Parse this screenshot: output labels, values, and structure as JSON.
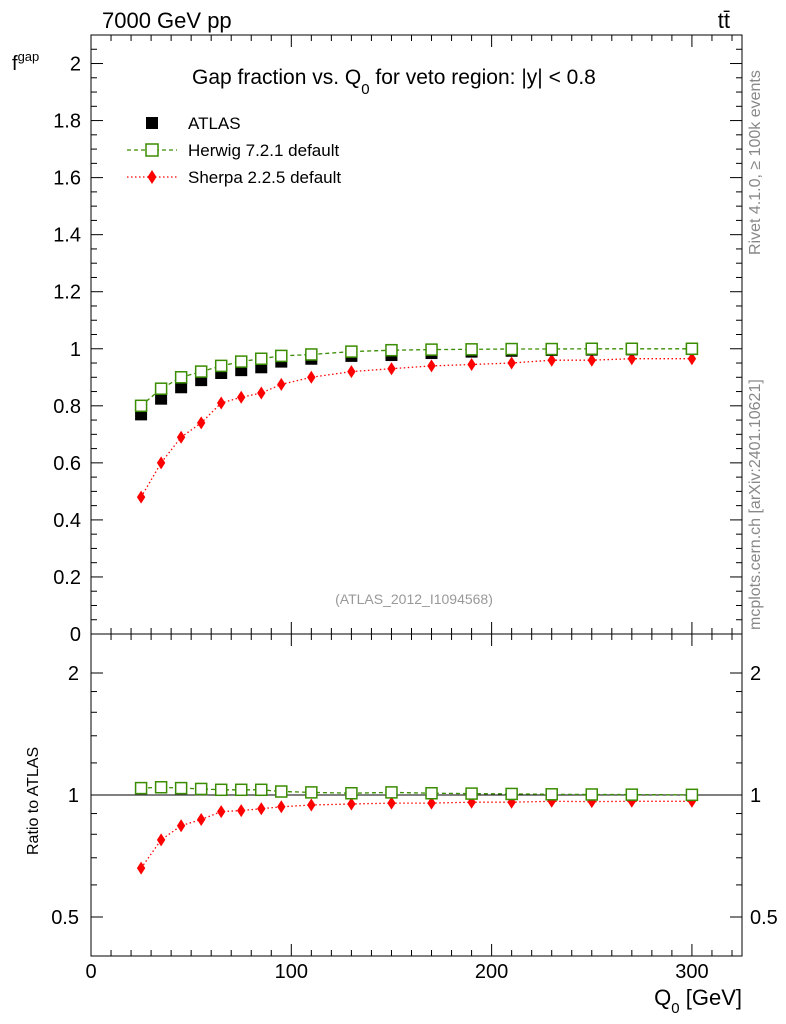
{
  "header": {
    "left": "7000 GeV pp",
    "right": "tt̄"
  },
  "side_labels": {
    "rivet": "Rivet 4.1.0, ≥ 100k events",
    "mcplots": "mcplots.cern.ch [arXiv:2401.10621]"
  },
  "chart_data": [
    {
      "panel": "main",
      "type": "scatter",
      "title_pre": "Gap fraction vs. Q",
      "title_sub": "0",
      "title_post": " for veto region: |y| < 0.8",
      "ylabel_main": "f",
      "ylabel_sub": "gap",
      "analysis_label": "(ATLAS_2012_I1094568)",
      "xlim": [
        0,
        325
      ],
      "ylim": [
        0,
        2.1
      ],
      "yticks": [
        0,
        0.2,
        0.4,
        0.6,
        0.8,
        1,
        1.2,
        1.4,
        1.6,
        1.8,
        2
      ],
      "ytick_labels": [
        "0",
        "0.2",
        "0.4",
        "0.6",
        "0.8",
        "1",
        "1.2",
        "1.4",
        "1.6",
        "1.8",
        "2"
      ],
      "x": [
        25,
        35,
        45,
        55,
        65,
        75,
        85,
        95,
        110,
        130,
        150,
        170,
        190,
        210,
        230,
        250,
        270,
        300
      ],
      "series": [
        {
          "name": "ATLAS",
          "color": "#000000",
          "marker": "square-filled",
          "values": [
            0.77,
            0.825,
            0.865,
            0.89,
            0.915,
            0.925,
            0.935,
            0.955,
            0.965,
            0.975,
            0.978,
            0.985,
            0.99,
            0.993,
            0.996,
            0.997,
            0.998,
            0.999
          ]
        },
        {
          "name": "Herwig 7.2.1 default",
          "color": "#3a8c00",
          "marker": "square-open",
          "line": "dashed",
          "values": [
            0.8,
            0.86,
            0.9,
            0.92,
            0.94,
            0.955,
            0.965,
            0.975,
            0.98,
            0.99,
            0.995,
            0.997,
            0.998,
            0.999,
            0.999,
            1.0,
            1.0,
            1.0
          ]
        },
        {
          "name": "Sherpa 2.2.5 default",
          "color": "#ff0000",
          "marker": "diamond",
          "line": "dotted",
          "values": [
            0.48,
            0.6,
            0.69,
            0.74,
            0.81,
            0.83,
            0.845,
            0.875,
            0.9,
            0.92,
            0.93,
            0.94,
            0.945,
            0.95,
            0.96,
            0.96,
            0.965,
            0.965
          ]
        }
      ]
    },
    {
      "panel": "ratio",
      "type": "scatter",
      "ylabel": "Ratio to ATLAS",
      "xlabel_main": "Q",
      "xlabel_sub": "0",
      "xlabel_post": " [GeV]",
      "xlim": [
        0,
        325
      ],
      "xticks": [
        0,
        100,
        200,
        300
      ],
      "xtick_labels": [
        "0",
        "100",
        "200",
        "300"
      ],
      "ylim": [
        0.35,
        2.3
      ],
      "yticks": [
        0.5,
        1,
        2
      ],
      "ytick_labels": [
        "0.5",
        "1",
        "2"
      ],
      "x": [
        25,
        35,
        45,
        55,
        65,
        75,
        85,
        95,
        110,
        130,
        150,
        170,
        190,
        210,
        230,
        250,
        270,
        300
      ],
      "series": [
        {
          "name": "Herwig 7.2.1 default",
          "color": "#3a8c00",
          "marker": "square-open",
          "line": "dashed",
          "values": [
            1.04,
            1.045,
            1.04,
            1.035,
            1.03,
            1.03,
            1.03,
            1.02,
            1.015,
            1.01,
            1.015,
            1.01,
            1.008,
            1.006,
            1.004,
            1.003,
            1.002,
            1.001
          ]
        },
        {
          "name": "Sherpa 2.2.5 default",
          "color": "#ff0000",
          "marker": "diamond",
          "line": "dotted",
          "values": [
            0.66,
            0.775,
            0.84,
            0.87,
            0.91,
            0.915,
            0.925,
            0.935,
            0.945,
            0.95,
            0.955,
            0.955,
            0.96,
            0.96,
            0.965,
            0.963,
            0.965,
            0.965
          ]
        }
      ]
    }
  ]
}
